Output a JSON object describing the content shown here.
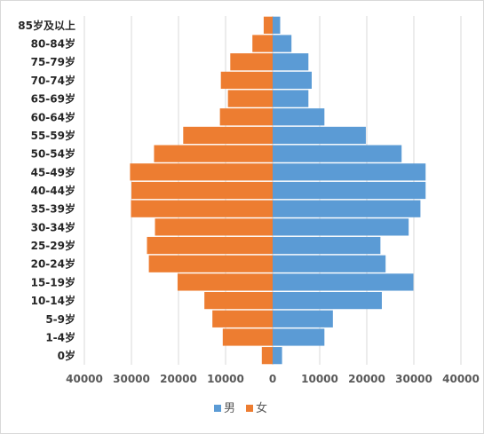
{
  "chart_data": {
    "type": "bar",
    "orientation": "horizontal",
    "layout": "population-pyramid",
    "categories": [
      "85岁及以上",
      "80-84岁",
      "75-79岁",
      "70-74岁",
      "65-69岁",
      "60-64岁",
      "55-59岁",
      "50-54岁",
      "45-49岁",
      "40-44岁",
      "35-39岁",
      "30-34岁",
      "25-29岁",
      "20-24岁",
      "15-19岁",
      "10-14岁",
      "5-9岁",
      "1-4岁",
      "0岁"
    ],
    "series": [
      {
        "name": "男",
        "color": "#5b9bd5",
        "direction": "right",
        "values": [
          1600,
          4000,
          7600,
          8300,
          7600,
          11000,
          19800,
          27400,
          32500,
          32500,
          31400,
          28900,
          22900,
          24000,
          29900,
          23200,
          12800,
          11000,
          2000
        ]
      },
      {
        "name": "女",
        "color": "#ed7d31",
        "direction": "left",
        "values": [
          1900,
          4300,
          9000,
          11000,
          9500,
          11200,
          19000,
          25200,
          30300,
          30000,
          30100,
          25000,
          26700,
          26300,
          20200,
          14500,
          12800,
          10600,
          2300
        ]
      }
    ],
    "xticks": [
      {
        "value": -40000,
        "label": "40000"
      },
      {
        "value": -30000,
        "label": "30000"
      },
      {
        "value": -20000,
        "label": "20000"
      },
      {
        "value": -10000,
        "label": "10000"
      },
      {
        "value": 0,
        "label": "0"
      },
      {
        "value": 10000,
        "label": "10000"
      },
      {
        "value": 20000,
        "label": "20000"
      },
      {
        "value": 30000,
        "label": "30000"
      },
      {
        "value": 40000,
        "label": "40000"
      }
    ],
    "xlim": [
      -40000,
      40000
    ],
    "grid": "vertical",
    "legend": "bottom-center",
    "title": "",
    "xlabel": "",
    "ylabel": ""
  }
}
